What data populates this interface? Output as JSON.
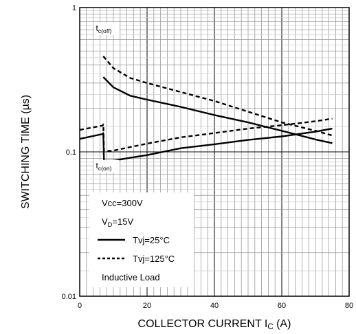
{
  "chart_data": {
    "type": "line",
    "title": "",
    "xlabel_main": "COLLECTOR CURRENT I",
    "xlabel_sub": "C",
    "xlabel_unit": " (A)",
    "ylabel": "SWITCHING TIME (µs)",
    "x_scale": "linear",
    "y_scale": "log",
    "xlim": [
      0,
      80
    ],
    "ylim": [
      0.01,
      1
    ],
    "x_ticks": [
      0,
      20,
      40,
      60,
      80
    ],
    "x_tick_labels": [
      "0",
      "20",
      "40",
      "60",
      "80"
    ],
    "y_ticks": [
      0.01,
      0.1,
      1
    ],
    "y_tick_labels": [
      "0.01",
      "0.1",
      "1"
    ],
    "grid": true,
    "curve_labels": [
      {
        "main": "t",
        "sub": "c(off)",
        "x": 4.8,
        "y": 0.69
      },
      {
        "main": "t",
        "sub": "c(on)",
        "x": 4.8,
        "y": 0.077
      }
    ],
    "legend": {
      "placement": "bottom-left",
      "conditions": [
        {
          "main": "Vcc=300V",
          "sub": ""
        },
        {
          "main": "V",
          "sub": "D",
          "rest": "=15V"
        }
      ],
      "entries": [
        {
          "label": "Tvj=25°C",
          "style": "solid"
        },
        {
          "label": "Tvj=125°C",
          "style": "dashed"
        }
      ],
      "footer": "Inductive Load"
    },
    "series": [
      {
        "name": "t c(off) Tvj=25°C",
        "style": "solid",
        "x": [
          7,
          10,
          15,
          20,
          30,
          40,
          50,
          60,
          70,
          75
        ],
        "y": [
          0.33,
          0.28,
          0.245,
          0.23,
          0.205,
          0.18,
          0.16,
          0.14,
          0.122,
          0.115
        ]
      },
      {
        "name": "t c(off) Tvj=125°C",
        "style": "dashed",
        "x": [
          7,
          10,
          15,
          20,
          30,
          40,
          50,
          60,
          70,
          75
        ],
        "y": [
          0.46,
          0.38,
          0.325,
          0.3,
          0.26,
          0.225,
          0.19,
          0.16,
          0.14,
          0.13
        ]
      },
      {
        "name": "t c(on) Tvj=25°C",
        "style": "solid",
        "x": [
          0,
          6.8,
          7,
          7.2,
          10,
          15,
          20,
          30,
          40,
          50,
          60,
          70,
          75
        ],
        "y": [
          0.123,
          0.133,
          0.135,
          0.087,
          0.087,
          0.091,
          0.095,
          0.106,
          0.113,
          0.121,
          0.128,
          0.138,
          0.145
        ]
      },
      {
        "name": "t c(on) Tvj=125°C",
        "style": "dashed",
        "x": [
          0,
          6.8,
          7,
          7.2,
          10,
          15,
          20,
          30,
          40,
          50,
          60,
          70,
          75
        ],
        "y": [
          0.142,
          0.152,
          0.155,
          0.101,
          0.102,
          0.108,
          0.114,
          0.126,
          0.135,
          0.145,
          0.153,
          0.163,
          0.17
        ]
      }
    ]
  }
}
